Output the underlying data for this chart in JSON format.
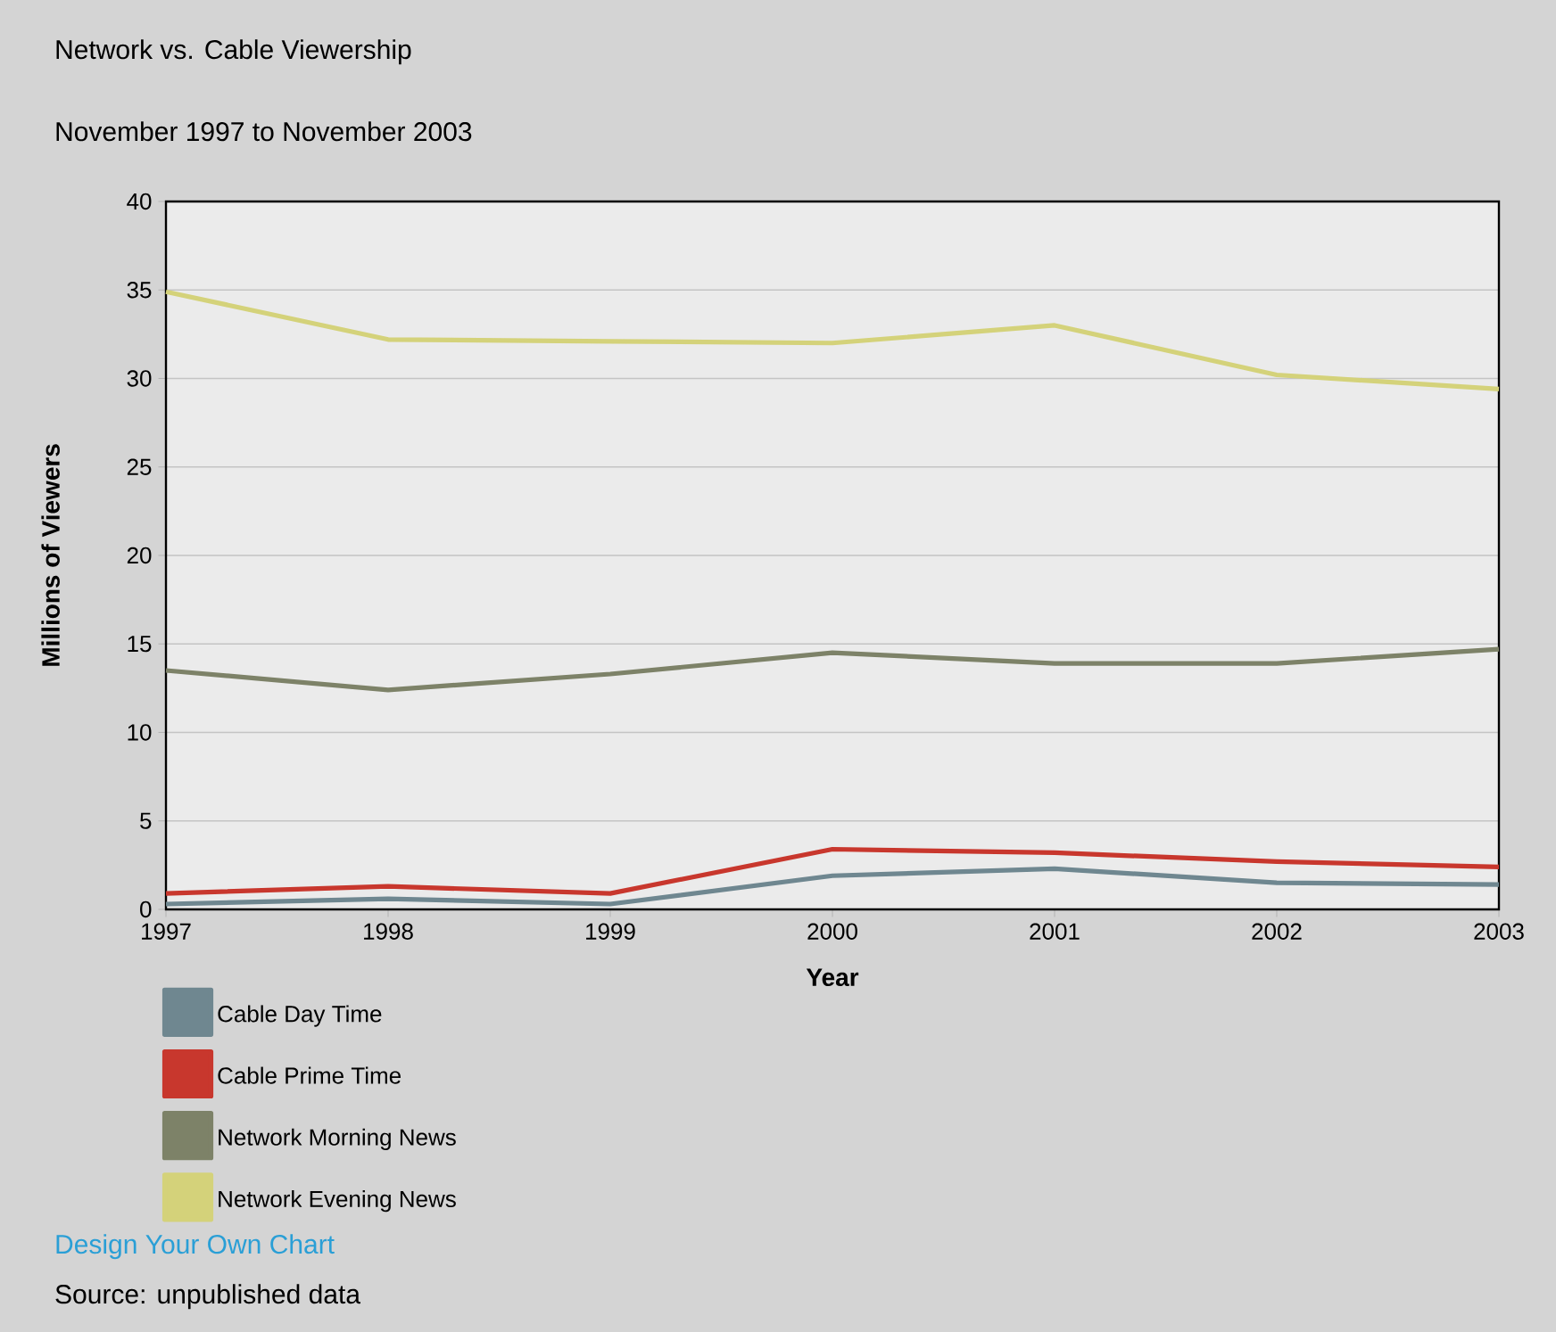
{
  "chart_data": {
    "type": "line",
    "title": "Network vs. Cable Viewership",
    "subtitle": "November 1997 to November 2003",
    "xlabel": "Year",
    "ylabel": "Millions of Viewers",
    "x": [
      1997,
      1998,
      1999,
      2000,
      2001,
      2002,
      2003
    ],
    "series": [
      {
        "name": "Cable Day Time",
        "color": "#6f8790",
        "values": [
          0.3,
          0.6,
          0.3,
          1.9,
          2.3,
          1.5,
          1.4
        ]
      },
      {
        "name": "Cable Prime Time",
        "color": "#c8372d",
        "values": [
          0.9,
          1.3,
          0.9,
          3.4,
          3.2,
          2.7,
          2.4
        ]
      },
      {
        "name": "Network Morning News",
        "color": "#7d8268",
        "values": [
          13.5,
          12.4,
          13.3,
          14.5,
          13.9,
          13.9,
          14.7
        ]
      },
      {
        "name": "Network Evening News",
        "color": "#d4d27a",
        "values": [
          34.9,
          32.2,
          32.1,
          32.0,
          33.0,
          30.2,
          29.4
        ]
      }
    ],
    "xlim": [
      1997,
      2003
    ],
    "xticks": [
      1997,
      1998,
      1999,
      2000,
      2001,
      2002,
      2003
    ],
    "ylim": [
      0,
      40
    ],
    "yticks": [
      0,
      5,
      10,
      15,
      20,
      25,
      30,
      35,
      40
    ],
    "grid": "y",
    "legend": "bottom left",
    "marker": "none",
    "line_style": "solid",
    "annotations": [
      "Design Your Own Chart",
      "Source: unpublished data"
    ]
  }
}
